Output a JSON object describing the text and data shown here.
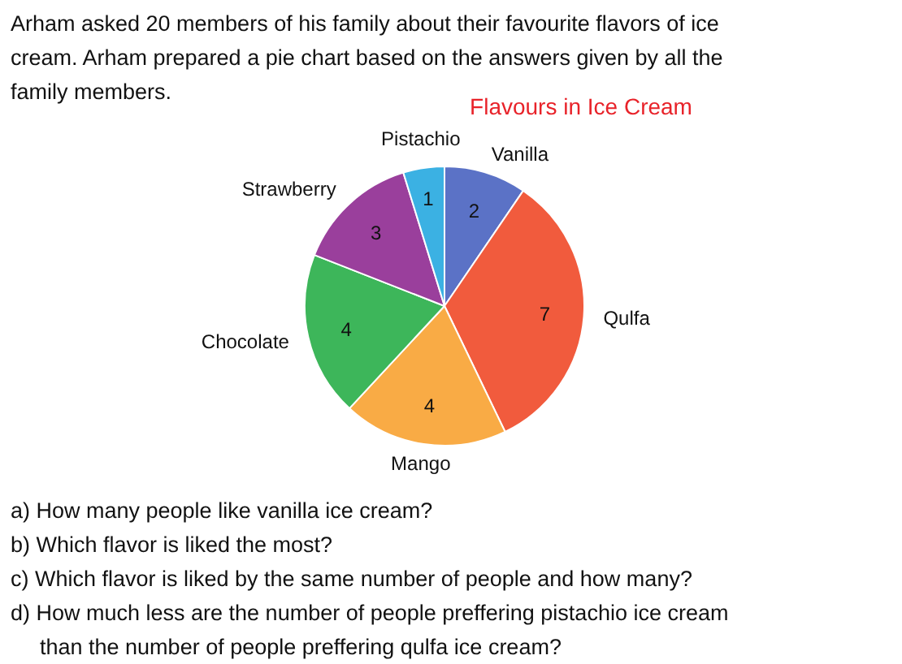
{
  "chart_data": {
    "type": "pie",
    "title": "Flavours in Ice Cream",
    "categories": [
      "Vanilla",
      "Qulfa",
      "Mango",
      "Chocolate",
      "Strawberry",
      "Pistachio"
    ],
    "values": [
      2,
      7,
      4,
      4,
      3,
      1
    ],
    "colors": [
      "#5b72c6",
      "#f15b3d",
      "#f9ab45",
      "#3db65a",
      "#9a3f9c",
      "#3bb1e3"
    ],
    "data_labels": true,
    "annotations": [
      "Arham asked 20 members of his family about their favourite flavors of ice cream. Arham prepared a pie chart based on the answers given by all the family members.",
      "a) How many people like vanilla ice cream?",
      "b) Which flavor is liked the most?",
      "c) Which flavor is liked by the same number of people and how many?",
      "d) How much less are the number of people preffering pistachio ice cream than the number of people preffering qulfa ice cream?"
    ]
  }
}
